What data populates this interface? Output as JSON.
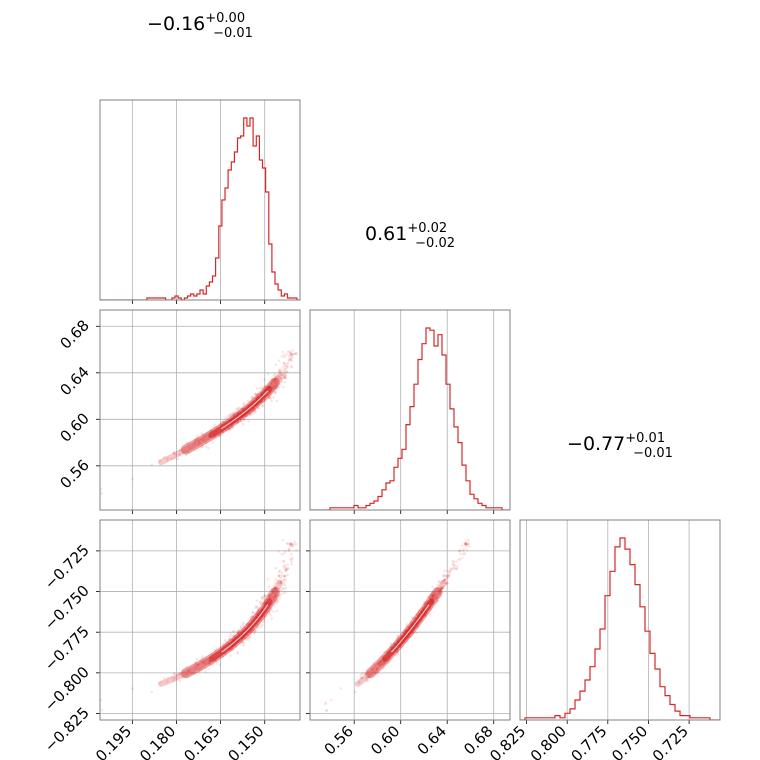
{
  "colors": {
    "accent": "#d62728",
    "grid": "#b0b0b0",
    "frame": "#808080"
  },
  "chart_data": {
    "type": "corner",
    "parameters": [
      {
        "median": -0.16,
        "title": {
          "value": "−0.16",
          "upper": "+0.00",
          "lower": "−0.01"
        },
        "range": [
          -0.206,
          -0.138
        ],
        "ticks": [
          -0.195,
          -0.18,
          -0.165,
          -0.15
        ],
        "tick_labels": [
          "−0.195",
          "−0.180",
          "−0.165",
          "−0.150"
        ]
      },
      {
        "median": 0.61,
        "title": {
          "value": "0.61",
          "upper": "+0.02",
          "lower": "−0.02"
        },
        "range": [
          0.522,
          0.694
        ],
        "ticks": [
          0.56,
          0.6,
          0.64,
          0.68
        ],
        "tick_labels": [
          "0.56",
          "0.60",
          "0.64",
          "0.68"
        ]
      },
      {
        "median": -0.77,
        "title": {
          "value": "−0.77",
          "upper": "+0.01",
          "lower": "−0.01"
        },
        "range": [
          -0.829,
          -0.706
        ],
        "ticks": [
          -0.825,
          -0.8,
          -0.775,
          -0.75,
          -0.725
        ],
        "tick_labels": [
          "−0.825",
          "−0.800",
          "−0.775",
          "−0.750",
          "−0.725"
        ]
      }
    ],
    "histograms": [
      {
        "edges": [
          -0.206,
          -0.138
        ],
        "counts": [
          0,
          0,
          0,
          0,
          0,
          0,
          0,
          0,
          0,
          0,
          0,
          0,
          0,
          0,
          0,
          1,
          1,
          1,
          1,
          1,
          1,
          0,
          0,
          1,
          2,
          1,
          0,
          1,
          2,
          3,
          2,
          3,
          5,
          3,
          7,
          9,
          12,
          21,
          37,
          50,
          56,
          65,
          69,
          74,
          81,
          82,
          91,
          87,
          91,
          77,
          82,
          70,
          66,
          54,
          28,
          14,
          8,
          5,
          2,
          3,
          1,
          1,
          1,
          0
        ]
      },
      {
        "edges": [
          0.522,
          0.694
        ],
        "counts": [
          0,
          0,
          0,
          0,
          0,
          1,
          1,
          1,
          1,
          1,
          1,
          2,
          1,
          1,
          2,
          3,
          4,
          6,
          9,
          12,
          13,
          19,
          23,
          27,
          38,
          46,
          56,
          67,
          74,
          81,
          80,
          73,
          78,
          69,
          56,
          45,
          37,
          30,
          20,
          13,
          7,
          5,
          3,
          2,
          1,
          1,
          1,
          1,
          0,
          0
        ]
      },
      {
        "edges": [
          -0.829,
          -0.706
        ],
        "counts": [
          0,
          1,
          1,
          1,
          1,
          1,
          1,
          2,
          1,
          3,
          5,
          9,
          13,
          18,
          24,
          32,
          41,
          56,
          67,
          78,
          82,
          77,
          70,
          61,
          51,
          40,
          30,
          23,
          15,
          11,
          7,
          4,
          2,
          2,
          1,
          1,
          1,
          1,
          0,
          0
        ]
      }
    ],
    "contour_levels": [
      "0.5",
      "1.0",
      "1.5",
      "2.0"
    ]
  }
}
